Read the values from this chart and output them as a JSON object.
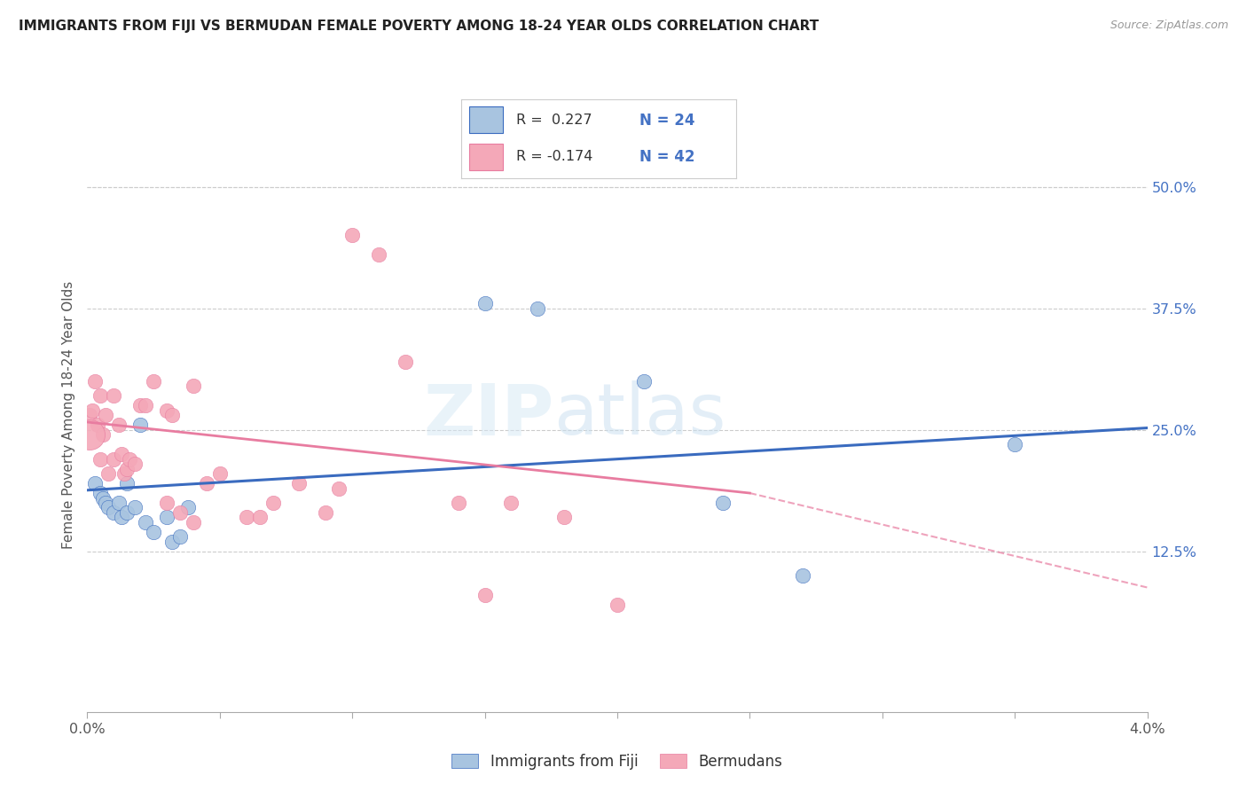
{
  "title": "IMMIGRANTS FROM FIJI VS BERMUDAN FEMALE POVERTY AMONG 18-24 YEAR OLDS CORRELATION CHART",
  "source": "Source: ZipAtlas.com",
  "ylabel": "Female Poverty Among 18-24 Year Olds",
  "ytick_values": [
    0.0,
    0.125,
    0.25,
    0.375,
    0.5
  ],
  "ytick_labels": [
    "",
    "12.5%",
    "25.0%",
    "37.5%",
    "50.0%"
  ],
  "xmin": 0.0,
  "xmax": 0.04,
  "ymin": -0.04,
  "ymax": 0.57,
  "legend1_label": "Immigrants from Fiji",
  "legend2_label": "Bermudans",
  "r1": "0.227",
  "n1": "24",
  "r2": "-0.174",
  "n2": "42",
  "color_blue": "#a8c4e0",
  "color_pink": "#f4a8b8",
  "line_blue": "#3a6bbf",
  "line_pink": "#e87ca0",
  "fiji_x": [
    0.0003,
    0.0005,
    0.0006,
    0.0007,
    0.0008,
    0.001,
    0.0012,
    0.0013,
    0.0015,
    0.0015,
    0.0018,
    0.002,
    0.0022,
    0.0025,
    0.003,
    0.0032,
    0.0035,
    0.0038,
    0.015,
    0.017,
    0.021,
    0.024,
    0.027,
    0.035
  ],
  "fiji_y": [
    0.195,
    0.185,
    0.18,
    0.175,
    0.17,
    0.165,
    0.175,
    0.16,
    0.195,
    0.165,
    0.17,
    0.255,
    0.155,
    0.145,
    0.16,
    0.135,
    0.14,
    0.17,
    0.38,
    0.375,
    0.3,
    0.175,
    0.1,
    0.235
  ],
  "bermuda_x": [
    0.0001,
    0.0002,
    0.0003,
    0.0004,
    0.0005,
    0.0005,
    0.0006,
    0.0007,
    0.0008,
    0.001,
    0.001,
    0.0012,
    0.0013,
    0.0014,
    0.0015,
    0.0016,
    0.0018,
    0.002,
    0.0022,
    0.0025,
    0.003,
    0.003,
    0.0032,
    0.0035,
    0.004,
    0.004,
    0.0045,
    0.005,
    0.006,
    0.0065,
    0.007,
    0.008,
    0.009,
    0.0095,
    0.01,
    0.011,
    0.012,
    0.014,
    0.015,
    0.016,
    0.018,
    0.02
  ],
  "bermuda_y": [
    0.265,
    0.27,
    0.3,
    0.255,
    0.285,
    0.22,
    0.245,
    0.265,
    0.205,
    0.285,
    0.22,
    0.255,
    0.225,
    0.205,
    0.21,
    0.22,
    0.215,
    0.275,
    0.275,
    0.3,
    0.27,
    0.175,
    0.265,
    0.165,
    0.295,
    0.155,
    0.195,
    0.205,
    0.16,
    0.16,
    0.175,
    0.195,
    0.165,
    0.19,
    0.45,
    0.43,
    0.32,
    0.175,
    0.08,
    0.175,
    0.16,
    0.07
  ],
  "watermark_zip": "ZIP",
  "watermark_atlas": "atlas",
  "background_color": "#ffffff",
  "grid_color": "#cccccc"
}
